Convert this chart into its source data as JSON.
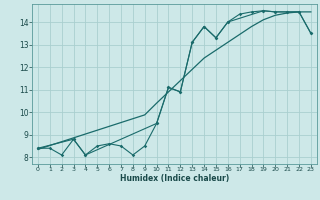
{
  "title": "",
  "xlabel": "Humidex (Indice chaleur)",
  "bg_color": "#cde8e8",
  "grid_color": "#aacfcf",
  "line_color": "#1a6b6b",
  "xlim": [
    -0.5,
    23.5
  ],
  "ylim": [
    7.7,
    14.8
  ],
  "xticks": [
    0,
    1,
    2,
    3,
    4,
    5,
    6,
    7,
    8,
    9,
    10,
    11,
    12,
    13,
    14,
    15,
    16,
    17,
    18,
    19,
    20,
    21,
    22,
    23
  ],
  "yticks": [
    8,
    9,
    10,
    11,
    12,
    13,
    14
  ],
  "series1_x": [
    0,
    1,
    2,
    3,
    4,
    5,
    6,
    7,
    8,
    9,
    10,
    11,
    12,
    13,
    14,
    15,
    16,
    17,
    18,
    19,
    20,
    21,
    22,
    23
  ],
  "series1_y": [
    8.4,
    8.4,
    8.1,
    8.8,
    8.1,
    8.5,
    8.6,
    8.5,
    8.1,
    8.5,
    9.5,
    11.1,
    10.9,
    13.1,
    13.8,
    13.3,
    14.0,
    14.35,
    14.45,
    14.5,
    14.45,
    14.45,
    14.45,
    13.5
  ],
  "series2_x": [
    0,
    1,
    2,
    3,
    4,
    5,
    6,
    7,
    8,
    9,
    10,
    11,
    12,
    13,
    14,
    15,
    16,
    17,
    18,
    19,
    20,
    21,
    22,
    23
  ],
  "series2_y": [
    8.35,
    8.52,
    8.69,
    8.86,
    9.03,
    9.2,
    9.37,
    9.54,
    9.71,
    9.88,
    10.4,
    10.9,
    11.4,
    11.9,
    12.4,
    12.75,
    13.1,
    13.45,
    13.8,
    14.1,
    14.3,
    14.4,
    14.45,
    14.45
  ],
  "series3_x": [
    0,
    3,
    4,
    10,
    11,
    12,
    13,
    14,
    15,
    16,
    19,
    20,
    21,
    22,
    23
  ],
  "series3_y": [
    8.4,
    8.8,
    8.1,
    9.5,
    11.1,
    10.9,
    13.1,
    13.8,
    13.3,
    14.0,
    14.5,
    14.45,
    14.45,
    14.45,
    13.5
  ]
}
